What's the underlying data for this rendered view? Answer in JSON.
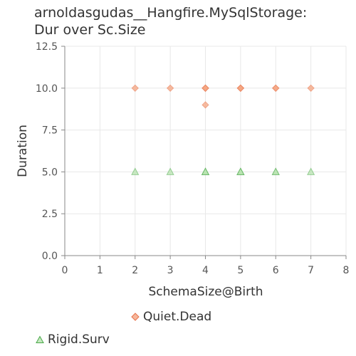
{
  "chart_data": {
    "type": "scatter",
    "title": [
      "arnoldasgudas__Hangfire.MySqlStorage:",
      "Dur over Sc.Size"
    ],
    "xlabel": "SchemaSize@Birth",
    "ylabel": "Duration",
    "xlim": [
      0,
      8
    ],
    "ylim": [
      0,
      12.5
    ],
    "x_ticks": [
      "0",
      "1",
      "2",
      "3",
      "4",
      "5",
      "6",
      "7",
      "8"
    ],
    "y_ticks": [
      "0.0",
      "2.5",
      "5.0",
      "7.5",
      "10.0",
      "12.5"
    ],
    "grid": true,
    "legend_position": "bottom",
    "series": [
      {
        "name": "Quiet.Dead",
        "marker": "diamond",
        "color": "#f4a582",
        "stroke": "#e8724a",
        "points": [
          {
            "x": 2,
            "y": 10,
            "n": 1
          },
          {
            "x": 3,
            "y": 10,
            "n": 1
          },
          {
            "x": 4,
            "y": 10,
            "n": 3
          },
          {
            "x": 4,
            "y": 9,
            "n": 1
          },
          {
            "x": 5,
            "y": 10,
            "n": 3
          },
          {
            "x": 6,
            "y": 10,
            "n": 2
          },
          {
            "x": 7,
            "y": 10,
            "n": 1
          }
        ]
      },
      {
        "name": "Rigid.Surv",
        "marker": "triangle",
        "color": "#b8e3b0",
        "stroke": "#4aa84a",
        "points": [
          {
            "x": 2,
            "y": 5,
            "n": 1
          },
          {
            "x": 3,
            "y": 5,
            "n": 1
          },
          {
            "x": 4,
            "y": 5,
            "n": 3
          },
          {
            "x": 5,
            "y": 5,
            "n": 3
          },
          {
            "x": 6,
            "y": 5,
            "n": 2
          },
          {
            "x": 7,
            "y": 5,
            "n": 1
          }
        ]
      }
    ]
  }
}
